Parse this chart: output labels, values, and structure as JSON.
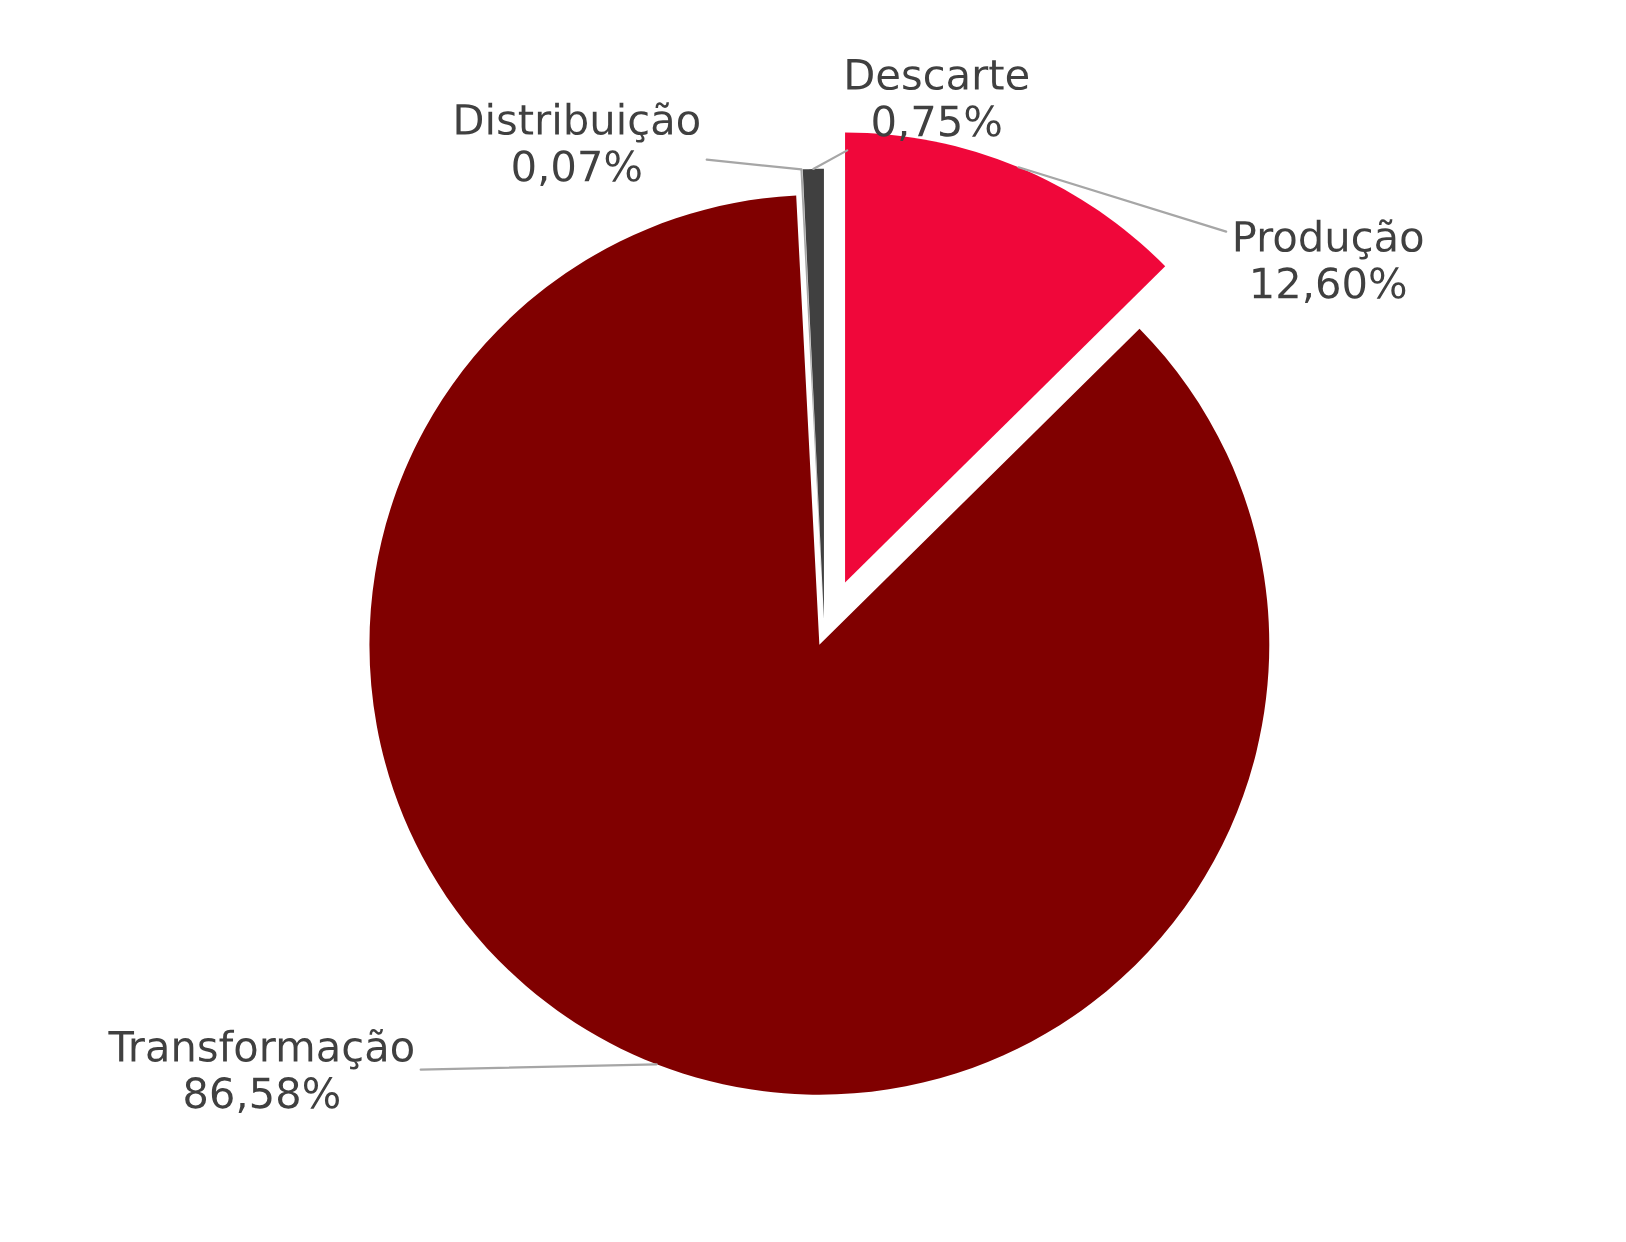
{
  "chart_data": {
    "type": "pie",
    "categories": [
      "Produção",
      "Transformação",
      "Distribuição",
      "Descarte"
    ],
    "values": [
      12.6,
      86.58,
      0.07,
      0.75
    ],
    "value_labels": [
      "12,60%",
      "86,58%",
      "0,07%",
      "0,75%"
    ],
    "colors": [
      "#f0073a",
      "#800000",
      "#a6a6a6",
      "#404040"
    ]
  }
}
